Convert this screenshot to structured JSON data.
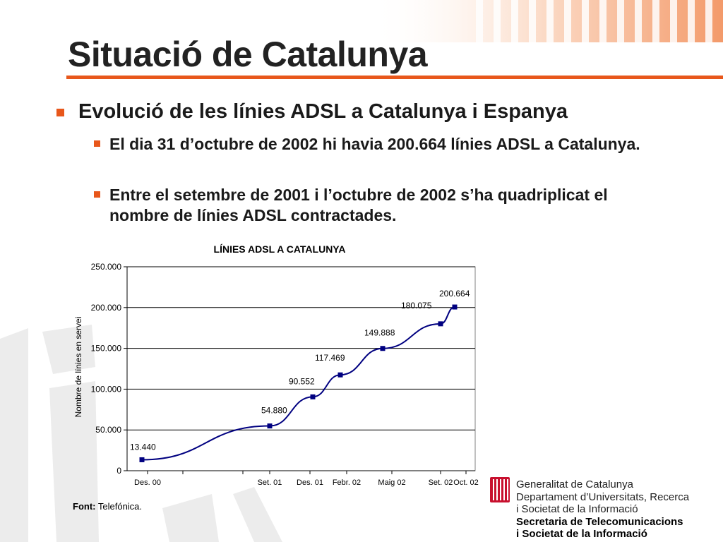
{
  "slide": {
    "title": "Situació de Catalunya",
    "bullet_main": "Evolució de les línies ADSL a Catalunya i Espanya",
    "sub_bullets": [
      "El dia 31 d’octubre de 2002 hi havia 200.664 línies ADSL a Catalunya.",
      "Entre el setembre de 2001 i l’octubre de 2002 s’ha quadriplicat el nombre de línies ADSL contractades."
    ],
    "source_label": "Font:",
    "source_value": "Telefónica."
  },
  "chart_data": {
    "type": "line",
    "title": "LÍNIES ADSL A CATALUNYA",
    "ylabel": "Nombre de línies en servei",
    "xlabel": "",
    "ylim": [
      0,
      250000
    ],
    "yticks": [
      0,
      50000,
      100000,
      150000,
      200000,
      250000
    ],
    "ytick_labels": [
      "0",
      "50.000",
      "100.000",
      "150.000",
      "200.000",
      "250.000"
    ],
    "x_tick_labels": [
      "Des. 00",
      "Set. 01",
      "Des. 01",
      "Febr. 02",
      "Maig 02",
      "Set. 02",
      "Oct. 02"
    ],
    "grid": true,
    "line_color": "#000080",
    "points": [
      {
        "x": "Des. 00",
        "y": 13440,
        "label": "13.440"
      },
      {
        "x": "Set. 01",
        "y": 54880,
        "label": "54.880"
      },
      {
        "x": "Des. 01",
        "y": 90552,
        "label": "90.552"
      },
      {
        "x": "Febr. 02",
        "y": 117469,
        "label": "117.469"
      },
      {
        "x": "Maig 02",
        "y": 149888,
        "label": "149.888"
      },
      {
        "x": "Set. 02",
        "y": 180075,
        "label": "180.075"
      },
      {
        "x": "Oct. 02",
        "y": 200664,
        "label": "200.664"
      }
    ]
  },
  "footer": {
    "org_lines": [
      "Generalitat de Catalunya",
      "Departament d’Universitats, Recerca",
      "i Societat de la Informació"
    ],
    "dept_lines": [
      "Secretaria de Telecomunicacions",
      "i Societat de la Informació"
    ]
  },
  "colors": {
    "accent": "#e8571b",
    "logo_red": "#c8102e"
  }
}
